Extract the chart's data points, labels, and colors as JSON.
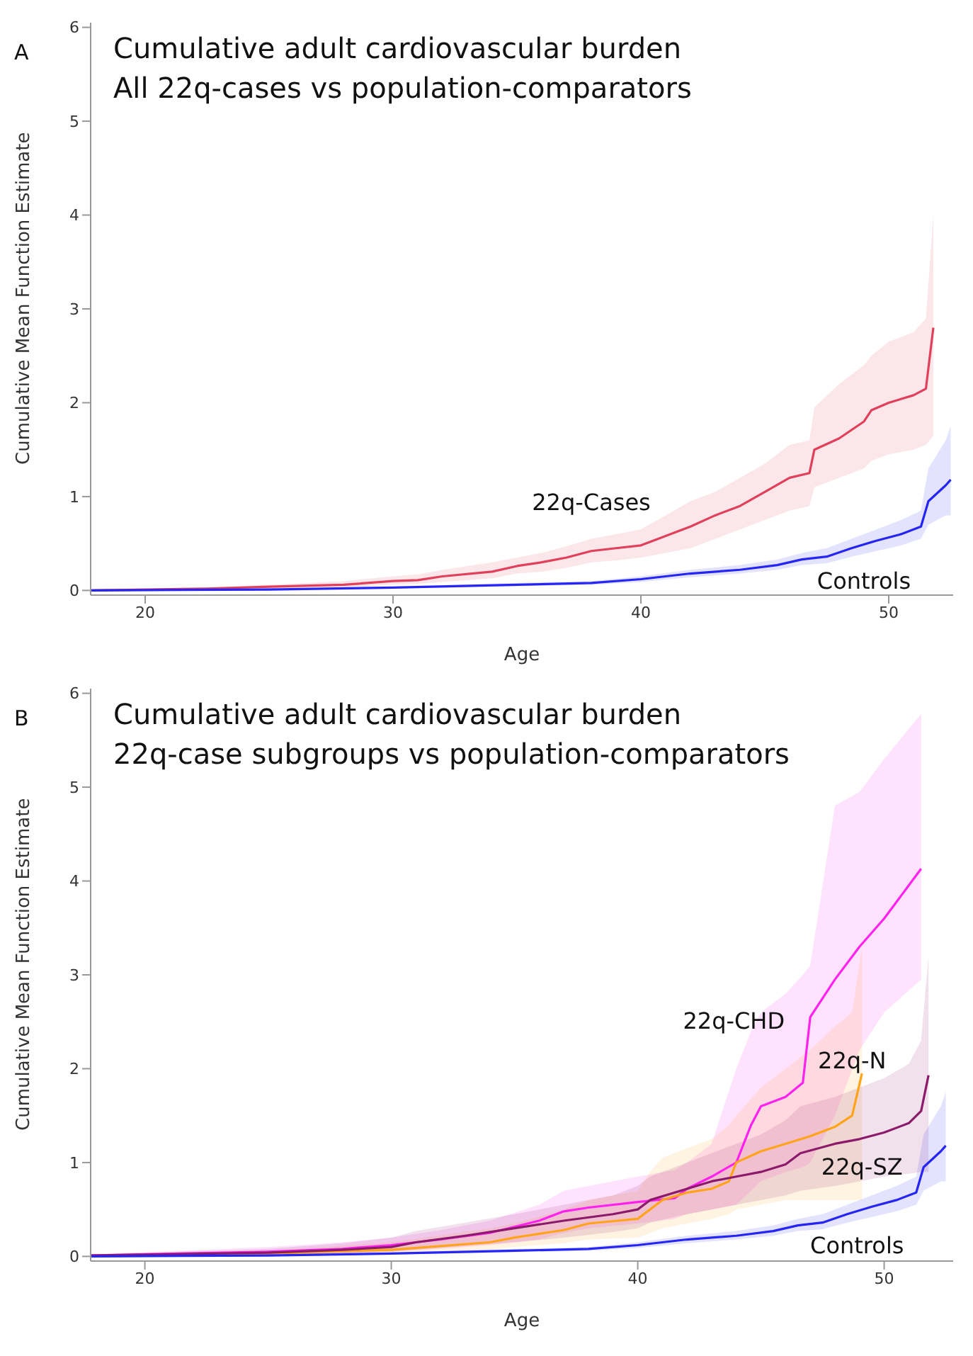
{
  "chart_data": [
    {
      "type": "line",
      "title": "Cumulative adult cardiovascular burden",
      "subtitle": "All 22q-cases vs population-comparators",
      "xlabel": "Age",
      "ylabel": "Cumulative Mean Function Estimate",
      "annotations": [
        "A"
      ],
      "xlim": [
        17.8,
        52.6
      ],
      "xticks": [
        20,
        30,
        40,
        50
      ],
      "ylim": [
        -0.05,
        6.05
      ],
      "yticks": [
        0,
        1,
        2,
        3,
        4,
        5,
        6
      ],
      "grid": false,
      "legend": false,
      "series": [
        {
          "name": "22q-Cases",
          "color": "#e0405a",
          "x": [
            17.8,
            22.5,
            25,
            28,
            30,
            31,
            32,
            34,
            35,
            36,
            37,
            38,
            39,
            40,
            41,
            42,
            43,
            44,
            45,
            46,
            46.8,
            47,
            48,
            49,
            49.3,
            50,
            51,
            51.5,
            51.8
          ],
          "values": [
            0,
            0.02,
            0.04,
            0.06,
            0.1,
            0.11,
            0.15,
            0.2,
            0.26,
            0.3,
            0.35,
            0.42,
            0.45,
            0.48,
            0.58,
            0.68,
            0.8,
            0.9,
            1.05,
            1.2,
            1.25,
            1.5,
            1.62,
            1.8,
            1.92,
            2,
            2.08,
            2.15,
            2.8
          ],
          "upper": [
            0,
            0.03,
            0.06,
            0.1,
            0.15,
            0.17,
            0.22,
            0.3,
            0.35,
            0.4,
            0.47,
            0.55,
            0.6,
            0.65,
            0.8,
            0.95,
            1.05,
            1.2,
            1.35,
            1.55,
            1.6,
            1.95,
            2.2,
            2.4,
            2.5,
            2.65,
            2.75,
            2.9,
            4.0
          ],
          "lower": [
            0,
            0.01,
            0.02,
            0.03,
            0.06,
            0.07,
            0.09,
            0.13,
            0.18,
            0.2,
            0.24,
            0.3,
            0.32,
            0.35,
            0.4,
            0.45,
            0.55,
            0.65,
            0.75,
            0.85,
            0.9,
            1.1,
            1.2,
            1.3,
            1.38,
            1.45,
            1.5,
            1.55,
            1.65
          ]
        },
        {
          "name": "Controls",
          "color": "#2525f5",
          "x": [
            17.8,
            25,
            30,
            35,
            38,
            40,
            42,
            44,
            45.5,
            46.5,
            47.5,
            48.5,
            49.5,
            50.5,
            51.3,
            51.6,
            52.3,
            52.5
          ],
          "values": [
            0,
            0.01,
            0.03,
            0.06,
            0.08,
            0.12,
            0.18,
            0.22,
            0.27,
            0.33,
            0.36,
            0.45,
            0.53,
            0.6,
            0.68,
            0.95,
            1.12,
            1.18
          ],
          "upper": [
            0,
            0.02,
            0.04,
            0.08,
            0.1,
            0.15,
            0.22,
            0.27,
            0.33,
            0.4,
            0.45,
            0.55,
            0.65,
            0.75,
            0.85,
            1.3,
            1.6,
            1.75
          ],
          "lower": [
            0,
            0.005,
            0.02,
            0.045,
            0.06,
            0.09,
            0.14,
            0.18,
            0.22,
            0.27,
            0.29,
            0.36,
            0.42,
            0.48,
            0.55,
            0.7,
            0.8,
            0.8
          ]
        }
      ]
    },
    {
      "type": "line",
      "title": "Cumulative adult cardiovascular burden",
      "subtitle": "22q-case subgroups vs population-comparators",
      "xlabel": "Age",
      "ylabel": "Cumulative Mean Function Estimate",
      "annotations": [
        "B"
      ],
      "xlim": [
        17.8,
        52.8
      ],
      "xticks": [
        20,
        30,
        40,
        50
      ],
      "ylim": [
        -0.05,
        6.05
      ],
      "yticks": [
        0,
        1,
        2,
        3,
        4,
        5,
        6
      ],
      "grid": false,
      "legend": false,
      "series": [
        {
          "name": "22q-CHD",
          "color": "#ff22ee",
          "x": [
            17.8,
            25,
            28,
            30,
            32,
            34,
            36,
            37,
            38,
            40,
            41.5,
            42,
            43,
            44,
            44.6,
            45,
            46,
            46.7,
            47,
            48,
            49,
            50,
            51.5
          ],
          "values": [
            0.01,
            0.05,
            0.08,
            0.12,
            0.18,
            0.25,
            0.38,
            0.48,
            0.52,
            0.58,
            0.62,
            0.72,
            0.85,
            1,
            1.4,
            1.6,
            1.7,
            1.85,
            2.55,
            2.95,
            3.3,
            3.6,
            4.13
          ],
          "upper": [
            0.02,
            0.1,
            0.15,
            0.2,
            0.28,
            0.38,
            0.55,
            0.7,
            0.75,
            0.85,
            0.92,
            1,
            1.2,
            2,
            2.4,
            2.6,
            2.8,
            3,
            3.1,
            4.8,
            4.95,
            5.3,
            5.78
          ],
          "lower": [
            0,
            0.02,
            0.03,
            0.05,
            0.08,
            0.12,
            0.18,
            0.25,
            0.3,
            0.35,
            0.4,
            0.45,
            0.5,
            0.55,
            0.7,
            0.8,
            0.9,
            0.95,
            1,
            1.5,
            2.2,
            2.6,
            2.95
          ]
        },
        {
          "name": "22q-N",
          "color": "#ffa31a",
          "x": [
            17.8,
            25,
            30,
            34,
            35,
            37,
            38,
            40,
            40.5,
            41,
            42,
            43,
            43.7,
            44,
            45,
            46,
            47,
            48,
            48.7,
            49.1
          ],
          "values": [
            0,
            0.03,
            0.07,
            0.15,
            0.2,
            0.28,
            0.35,
            0.4,
            0.5,
            0.6,
            0.68,
            0.72,
            0.8,
            1,
            1.12,
            1.2,
            1.28,
            1.38,
            1.5,
            1.95
          ],
          "upper": [
            0,
            0.06,
            0.15,
            0.3,
            0.35,
            0.5,
            0.6,
            0.7,
            0.9,
            1.05,
            1.15,
            1.25,
            1.4,
            1.5,
            1.8,
            2,
            2.2,
            2.45,
            2.6,
            3.3
          ],
          "lower": [
            0,
            0.01,
            0.02,
            0.07,
            0.1,
            0.14,
            0.18,
            0.2,
            0.25,
            0.3,
            0.35,
            0.4,
            0.45,
            0.5,
            0.55,
            0.6,
            0.6,
            0.6,
            0.6,
            0.6
          ]
        },
        {
          "name": "22q-SZ",
          "color": "#8b1a6b",
          "x": [
            17.8,
            25,
            28,
            30,
            31,
            33,
            35,
            37,
            39,
            40,
            40.5,
            42,
            43,
            44,
            45,
            46,
            46.6,
            48,
            49,
            50,
            51,
            51.5,
            51.8
          ],
          "values": [
            0.01,
            0.04,
            0.07,
            0.1,
            0.15,
            0.22,
            0.3,
            0.38,
            0.45,
            0.5,
            0.6,
            0.72,
            0.8,
            0.85,
            0.9,
            0.98,
            1.1,
            1.2,
            1.25,
            1.32,
            1.42,
            1.55,
            1.93
          ],
          "upper": [
            0.02,
            0.08,
            0.14,
            0.2,
            0.27,
            0.36,
            0.45,
            0.55,
            0.65,
            0.75,
            0.85,
            1,
            1.1,
            1.2,
            1.3,
            1.45,
            1.6,
            1.7,
            1.8,
            1.9,
            2.05,
            2.3,
            3.2
          ],
          "lower": [
            0,
            0.02,
            0.03,
            0.05,
            0.07,
            0.11,
            0.15,
            0.2,
            0.26,
            0.3,
            0.36,
            0.45,
            0.5,
            0.55,
            0.6,
            0.65,
            0.7,
            0.75,
            0.8,
            0.85,
            0.88,
            0.9,
            0.9
          ]
        },
        {
          "name": "Controls",
          "color": "#2525f5",
          "x": [
            17.8,
            25,
            30,
            35,
            38,
            40,
            42,
            44,
            45.5,
            46.5,
            47.5,
            48.5,
            49.5,
            50.5,
            51.3,
            51.6,
            52.3,
            52.5
          ],
          "values": [
            0,
            0.01,
            0.03,
            0.06,
            0.08,
            0.12,
            0.18,
            0.22,
            0.27,
            0.33,
            0.36,
            0.45,
            0.53,
            0.6,
            0.68,
            0.95,
            1.12,
            1.18
          ],
          "upper": [
            0,
            0.02,
            0.04,
            0.08,
            0.1,
            0.15,
            0.22,
            0.27,
            0.33,
            0.4,
            0.45,
            0.55,
            0.65,
            0.75,
            0.85,
            1.3,
            1.6,
            1.75
          ],
          "lower": [
            0,
            0.005,
            0.02,
            0.045,
            0.06,
            0.09,
            0.14,
            0.18,
            0.22,
            0.27,
            0.29,
            0.36,
            0.42,
            0.48,
            0.55,
            0.7,
            0.8,
            0.8
          ]
        }
      ]
    }
  ]
}
